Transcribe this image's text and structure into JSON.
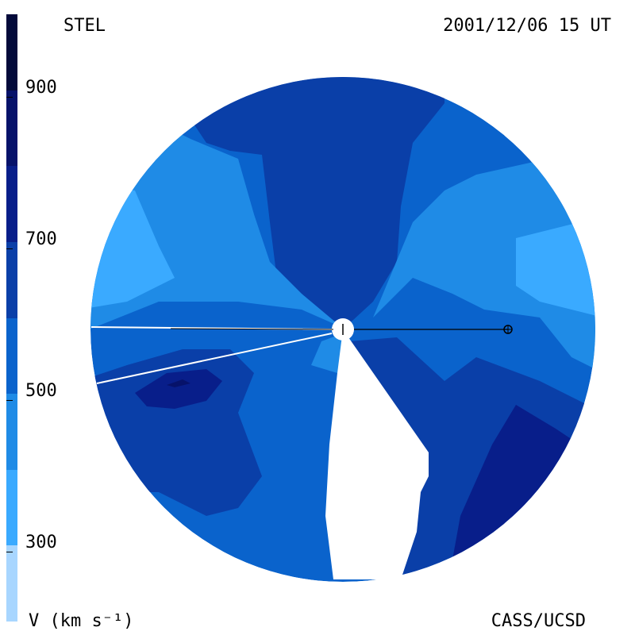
{
  "labels": {
    "top_left": "STEL",
    "top_right": "2001/12/06 15 UT",
    "bottom_left": "V (km s⁻¹)",
    "bottom_right": "CASS/UCSD"
  },
  "chart_data": {
    "type": "heatmap",
    "title": "",
    "colorbar": {
      "label": "V (km s⁻¹)",
      "ticks": [
        "300",
        "500",
        "700",
        "900"
      ],
      "tick_values": [
        300,
        500,
        700,
        900
      ],
      "range": [
        200,
        1000
      ],
      "levels": [
        {
          "min": 200,
          "max": 300,
          "color": "#a8d6ff"
        },
        {
          "min": 300,
          "max": 400,
          "color": "#3aaaff"
        },
        {
          "min": 400,
          "max": 500,
          "color": "#1f8be6"
        },
        {
          "min": 500,
          "max": 600,
          "color": "#0a63cc"
        },
        {
          "min": 600,
          "max": 700,
          "color": "#0a3fa8"
        },
        {
          "min": 700,
          "max": 800,
          "color": "#081e8a"
        },
        {
          "min": 800,
          "max": 900,
          "color": "#06126a"
        },
        {
          "min": 900,
          "max": 1000,
          "color": "#030a3a"
        }
      ]
    },
    "legend": "left"
  }
}
